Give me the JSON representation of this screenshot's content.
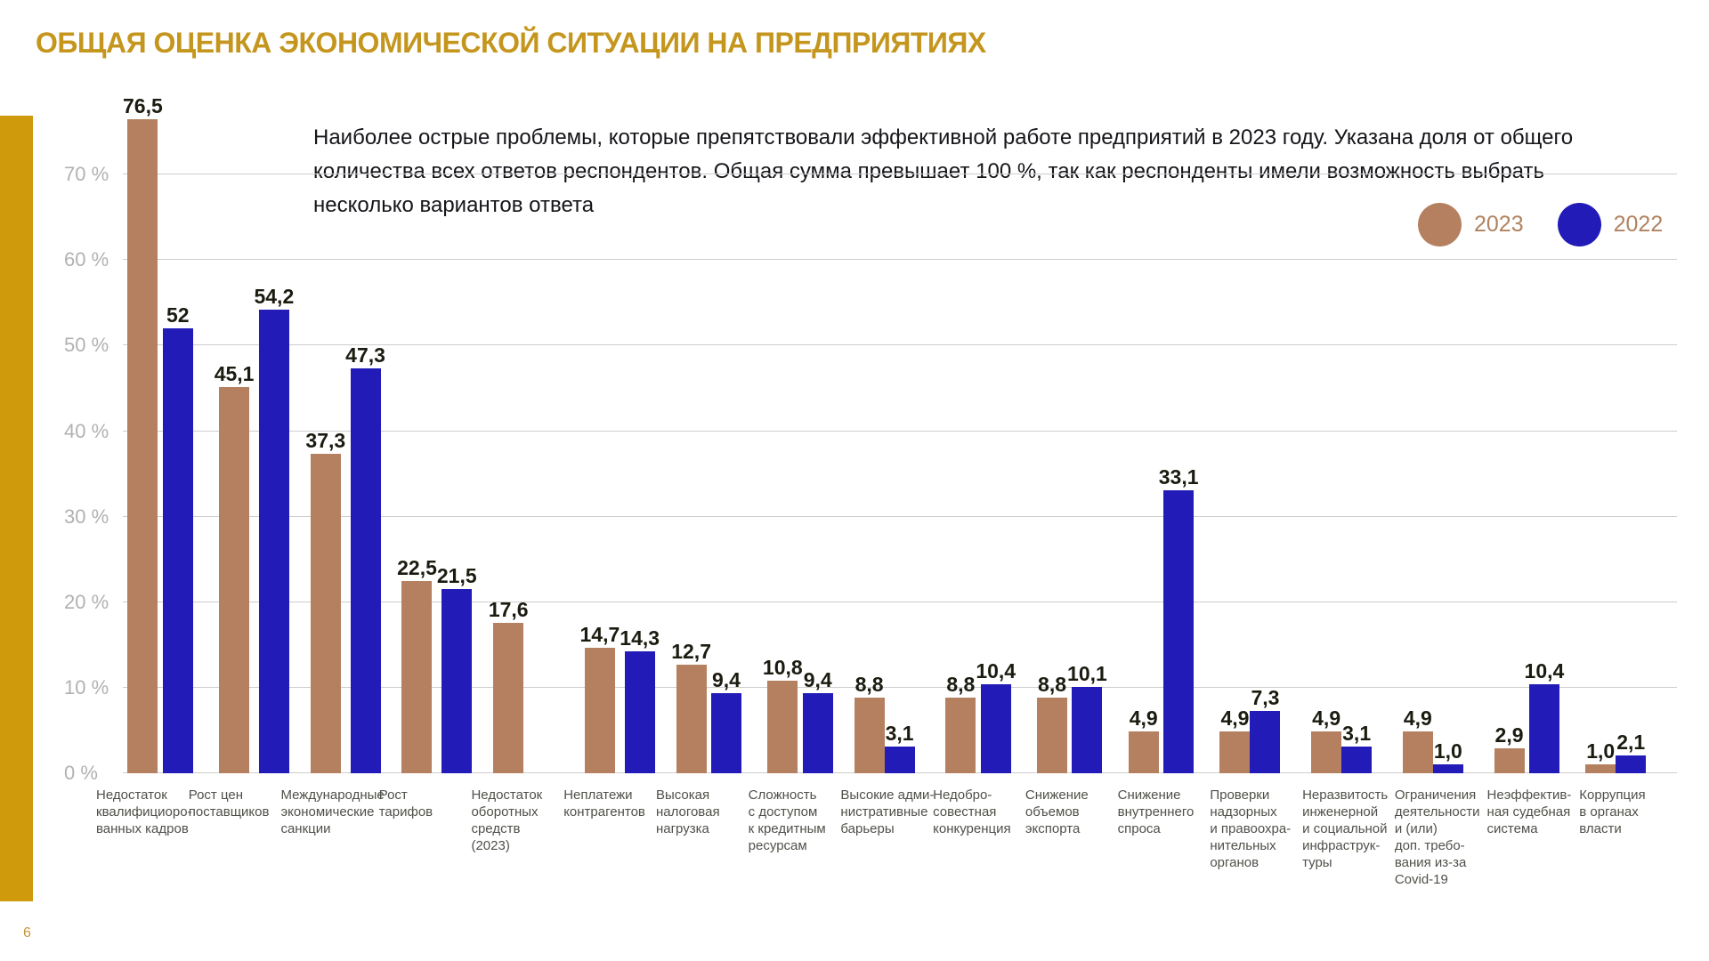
{
  "page": {
    "title": "ОБЩАЯ ОЦЕНКА ЭКОНОМИЧЕСКОЙ СИТУАЦИИ НА ПРЕДПРИЯТИЯХ",
    "subtitle": "Наиболее острые проблемы, которые препятствовали эффективной работе предприятий в 2023 году. Указана доля от общего\nколичества всех ответов респондентов. Общая сумма превышает 100 %, так как респонденты имели возможность выбрать\nнесколько вариантов ответа",
    "page_number": "6"
  },
  "colors": {
    "title_gold": "#c5961e",
    "accent_bar_gold": "#d09a0d",
    "series_2023_brown": "#b5805f",
    "series_2022_blue": "#221bb7",
    "gridline_gray": "#cdcdcd",
    "axis_label_gray": "#b1b1b1",
    "legend_text_brown": "#b0825f"
  },
  "legend": {
    "items": [
      {
        "label": "2023",
        "color": "#b5805f"
      },
      {
        "label": "2022",
        "color": "#221bb7"
      }
    ]
  },
  "chart_data": {
    "type": "bar",
    "title": "ОБЩАЯ ОЦЕНКА ЭКОНОМИЧЕСКОЙ СИТУАЦИИ НА ПРЕДПРИЯТИЯХ",
    "ylabel": "",
    "xlabel": "",
    "ylim": [
      0,
      80
    ],
    "grid": true,
    "legend_position": "top-right",
    "yticks": [
      {
        "value": 0,
        "label": "0 %"
      },
      {
        "value": 10,
        "label": "10 %"
      },
      {
        "value": 20,
        "label": "20 %"
      },
      {
        "value": 30,
        "label": "30 %"
      },
      {
        "value": 40,
        "label": "40 %"
      },
      {
        "value": 50,
        "label": "50 %"
      },
      {
        "value": 60,
        "label": "60 %"
      },
      {
        "value": 70,
        "label": "70 %"
      }
    ],
    "categories": [
      "Недостаток\nквалифициоро-\nванных кадров",
      "Рост цен\nпоставщиков",
      "Международные\nэкономические\nсанкции",
      "Рост\nтарифов",
      "Недостаток\nоборотных\nсредств\n(2023)",
      "Неплатежи\nконтрагентов",
      "Высокая\nналоговая\nнагрузка",
      "Сложность\nс доступом\nк кредитным\nресурсам",
      "Высокие адми-\nнистративные\nбарьеры",
      "Недобро-\nсовестная\nконкуренция",
      "Снижение\nобъемов\nэкспорта",
      "Снижение\nвнутреннего\nспроса",
      "Проверки\nнадзорных\nи правоохра-\nнительных\nорганов",
      "Неразвитость\nинженерной\nи социальной\nинфраструк-\nтуры",
      "Ограничения\nдеятельности\nи (или)\nдоп. требо-\nвания из-за\nCovid-19",
      "Неэффектив-\nная судебная\nсистема",
      "Коррупция\nв органах\nвласти"
    ],
    "series": [
      {
        "name": "2023",
        "color": "#b5805f",
        "values": [
          76.5,
          45.1,
          37.3,
          22.5,
          17.6,
          14.7,
          12.7,
          10.8,
          8.8,
          8.8,
          8.8,
          4.9,
          4.9,
          4.9,
          4.9,
          2.9,
          1.0
        ],
        "labels": [
          "76,5",
          "45,1",
          "37,3",
          "22,5",
          "17,6",
          "14,7",
          "12,7",
          "10,8",
          "8,8",
          "8,8",
          "8,8",
          "4,9",
          "4,9",
          "4,9",
          "4,9",
          "2,9",
          "1,0"
        ]
      },
      {
        "name": "2022",
        "color": "#221bb7",
        "values": [
          52,
          54.2,
          47.3,
          21.5,
          null,
          14.3,
          9.4,
          9.4,
          3.1,
          10.4,
          10.1,
          33.1,
          7.3,
          3.1,
          1.0,
          10.4,
          2.1
        ],
        "labels": [
          "52",
          "54,2",
          "47,3",
          "21,5",
          null,
          "14,3",
          "9,4",
          "9,4",
          "3,1",
          "10,4",
          "10,1",
          "33,1",
          "7,3",
          "3,1",
          "1,0",
          "10,4",
          "2,1"
        ]
      }
    ]
  }
}
